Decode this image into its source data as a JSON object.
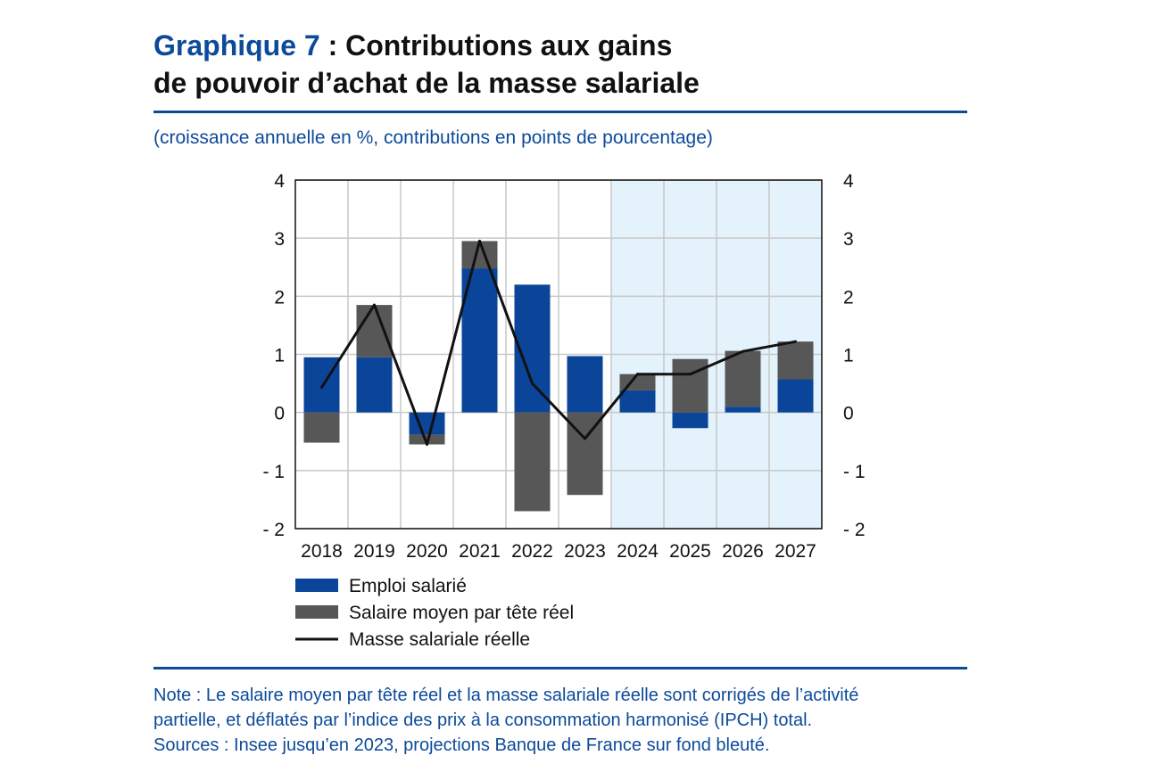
{
  "title": {
    "label": "Graphique 7",
    "text_line1": " : Contributions aux gains",
    "text_line2": "de pouvoir d’achat de la masse salariale"
  },
  "subtitle": "(croissance annuelle en %, contributions en points de pourcentage)",
  "colors": {
    "accent": "#0c4a9a",
    "series_emploi": "#0a4599",
    "series_salaire": "#575757",
    "series_masse": "#111111",
    "projection_bg": "#e3f2fb",
    "grid": "#c8c8c8"
  },
  "chart_data": {
    "type": "bar",
    "stacked": true,
    "categories": [
      "2018",
      "2019",
      "2020",
      "2021",
      "2022",
      "2023",
      "2024",
      "2025",
      "2026",
      "2027"
    ],
    "series": [
      {
        "name": "Emploi salarié",
        "kind": "bar",
        "values": [
          0.95,
          0.95,
          -0.38,
          2.48,
          2.2,
          0.97,
          0.38,
          -0.27,
          0.1,
          0.57
        ]
      },
      {
        "name": "Salaire moyen par tête réel",
        "kind": "bar",
        "values": [
          -0.52,
          0.9,
          -0.17,
          0.47,
          -1.7,
          -1.42,
          0.28,
          0.92,
          0.96,
          0.65
        ]
      },
      {
        "name": "Masse salariale réelle",
        "kind": "line",
        "values": [
          0.43,
          1.85,
          -0.55,
          2.95,
          0.5,
          -0.45,
          0.66,
          0.66,
          1.05,
          1.22
        ]
      }
    ],
    "ylim": [
      -2,
      4
    ],
    "yticks": [
      4,
      3,
      2,
      1,
      0,
      -1,
      -2
    ],
    "ytick_labels": [
      "4",
      "3",
      "2",
      "1",
      "0",
      "- 1",
      "- 2"
    ],
    "projection_start": "2024",
    "legend_position": "bottom-left",
    "grid": true
  },
  "notes": {
    "line1": "Note : Le salaire moyen par tête réel et la masse salariale réelle sont corrigés de l’activité",
    "line2": "partielle, et déflatés par l’indice des prix à la consommation harmonisé (IPCH) total.",
    "line3": "Sources : Insee jusqu’en 2023, projections Banque de France sur fond bleuté."
  }
}
